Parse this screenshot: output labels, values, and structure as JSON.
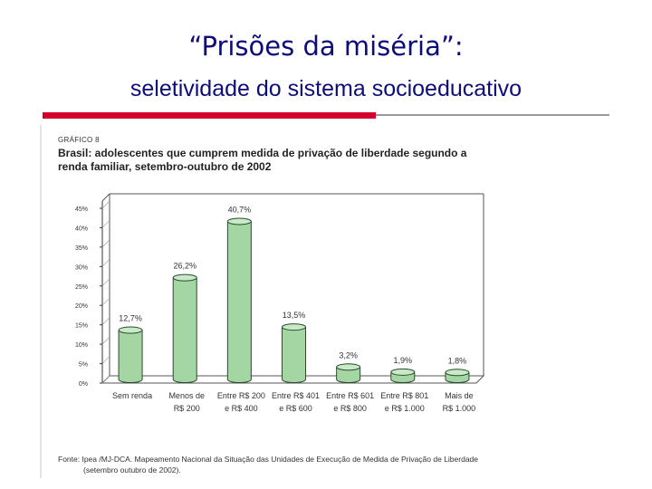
{
  "slide": {
    "title": "“Prisões da miséria”:",
    "subtitle": "seletividade do sistema socioeducativo"
  },
  "figure": {
    "caption": "GRÁFICO 8",
    "source_line1": "Fonte: Ipea /MJ-DCA. Mapeamento Nacional da Situação das Unidades de Execução de Medida de Privação de Liberdade",
    "source_line2": "(setembro outubro de 2002)."
  },
  "colors": {
    "title": "#0d0d7a",
    "bar": "#a4d6a4",
    "accent": "#d2002a"
  },
  "chart_data": {
    "type": "bar",
    "title": "Brasil: adolescentes que cumprem medida de privação de liberdade segundo a renda familiar, setembro-outubro de 2002",
    "categories": [
      [
        "Sem renda"
      ],
      [
        "Menos de",
        "R$ 200"
      ],
      [
        "Entre R$ 200",
        "e R$ 400"
      ],
      [
        "Entre R$ 401",
        "e R$ 600"
      ],
      [
        "Entre R$ 601",
        "e R$ 800"
      ],
      [
        "Entre R$ 801",
        "e R$ 1.000"
      ],
      [
        "Mais de",
        "R$ 1.000"
      ]
    ],
    "values": [
      12.7,
      26.2,
      40.7,
      13.5,
      3.2,
      1.9,
      1.8
    ],
    "data_labels": [
      "12,7%",
      "26,2%",
      "40,7%",
      "13,5%",
      "3,2%",
      "1,9%",
      "1,8%"
    ],
    "yticks": [
      "0%",
      "5%",
      "10%",
      "15%",
      "20%",
      "25%",
      "30%",
      "35%",
      "40%",
      "45%"
    ],
    "ylim": [
      0,
      45
    ],
    "grid": false
  }
}
